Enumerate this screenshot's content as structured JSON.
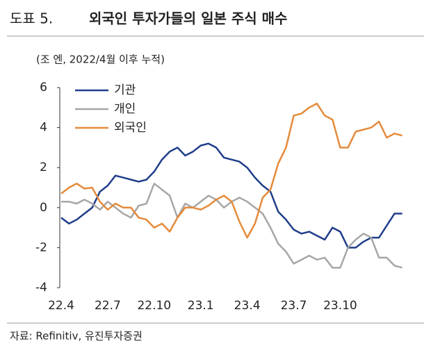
{
  "chart_data": {
    "type": "line",
    "label": "도표 5.",
    "title": "외국인 투자가들의 일본 주식 매수",
    "subtitle": "(조 엔, 2022/4월 이후 누적)",
    "source": "자료: Refinitiv, 유진투자증권",
    "categories": [
      "22.4",
      null,
      null,
      null,
      null,
      null,
      "22.7",
      null,
      null,
      null,
      null,
      null,
      "22.10",
      null,
      null,
      null,
      null,
      null,
      "23.1",
      null,
      null,
      null,
      null,
      null,
      "23.4",
      null,
      null,
      null,
      null,
      null,
      "23.7",
      null,
      null,
      null,
      null,
      null,
      "23.10",
      null,
      null,
      null,
      null,
      null,
      null,
      null,
      null
    ],
    "ylim": [
      -4,
      6
    ],
    "yticks": [
      -4,
      -2,
      0,
      2,
      4,
      6
    ],
    "grid": false,
    "legend": "upper left",
    "series": [
      {
        "name": "기관",
        "color": "#1f3d8a",
        "values": [
          -0.5,
          -0.8,
          -0.6,
          -0.3,
          0.0,
          0.8,
          1.1,
          1.6,
          1.5,
          1.4,
          1.3,
          1.4,
          1.8,
          2.4,
          2.8,
          3.0,
          2.6,
          2.8,
          3.1,
          3.2,
          3.0,
          2.5,
          2.4,
          2.3,
          2.0,
          1.5,
          1.1,
          0.8,
          -0.2,
          -0.6,
          -1.1,
          -1.3,
          -1.2,
          -1.4,
          -1.6,
          -1.0,
          -1.2,
          -2.0,
          -2.0,
          -1.7,
          -1.5,
          -1.5,
          -0.9,
          -0.3,
          -0.3
        ]
      },
      {
        "name": "개인",
        "color": "#a6a6a6",
        "values": [
          0.3,
          0.3,
          0.2,
          0.4,
          0.2,
          -0.1,
          0.3,
          0.0,
          -0.3,
          -0.5,
          0.1,
          0.2,
          1.2,
          0.9,
          0.6,
          -0.5,
          0.2,
          0.0,
          0.3,
          0.6,
          0.4,
          0.0,
          0.3,
          0.5,
          0.3,
          0.0,
          -0.3,
          -1.0,
          -1.8,
          -2.2,
          -2.8,
          -2.6,
          -2.4,
          -2.6,
          -2.5,
          -3.0,
          -3.0,
          -2.0,
          -1.6,
          -1.3,
          -1.5,
          -2.5,
          -2.5,
          -2.9,
          -3.0
        ]
      },
      {
        "name": "외국인",
        "color": "#e58a3a",
        "values": [
          0.7,
          1.0,
          1.2,
          0.95,
          1.0,
          0.3,
          -0.1,
          0.2,
          0.0,
          0.0,
          -0.5,
          -0.6,
          -1.0,
          -0.8,
          -1.2,
          -0.5,
          0.0,
          0.0,
          -0.1,
          0.1,
          0.4,
          0.6,
          0.3,
          -0.7,
          -1.5,
          -0.8,
          0.5,
          0.9,
          2.2,
          3.0,
          4.6,
          4.7,
          5.0,
          5.2,
          4.6,
          4.4,
          3.0,
          3.0,
          3.8,
          3.9,
          4.0,
          4.3,
          3.5,
          3.7,
          3.6
        ]
      }
    ]
  }
}
